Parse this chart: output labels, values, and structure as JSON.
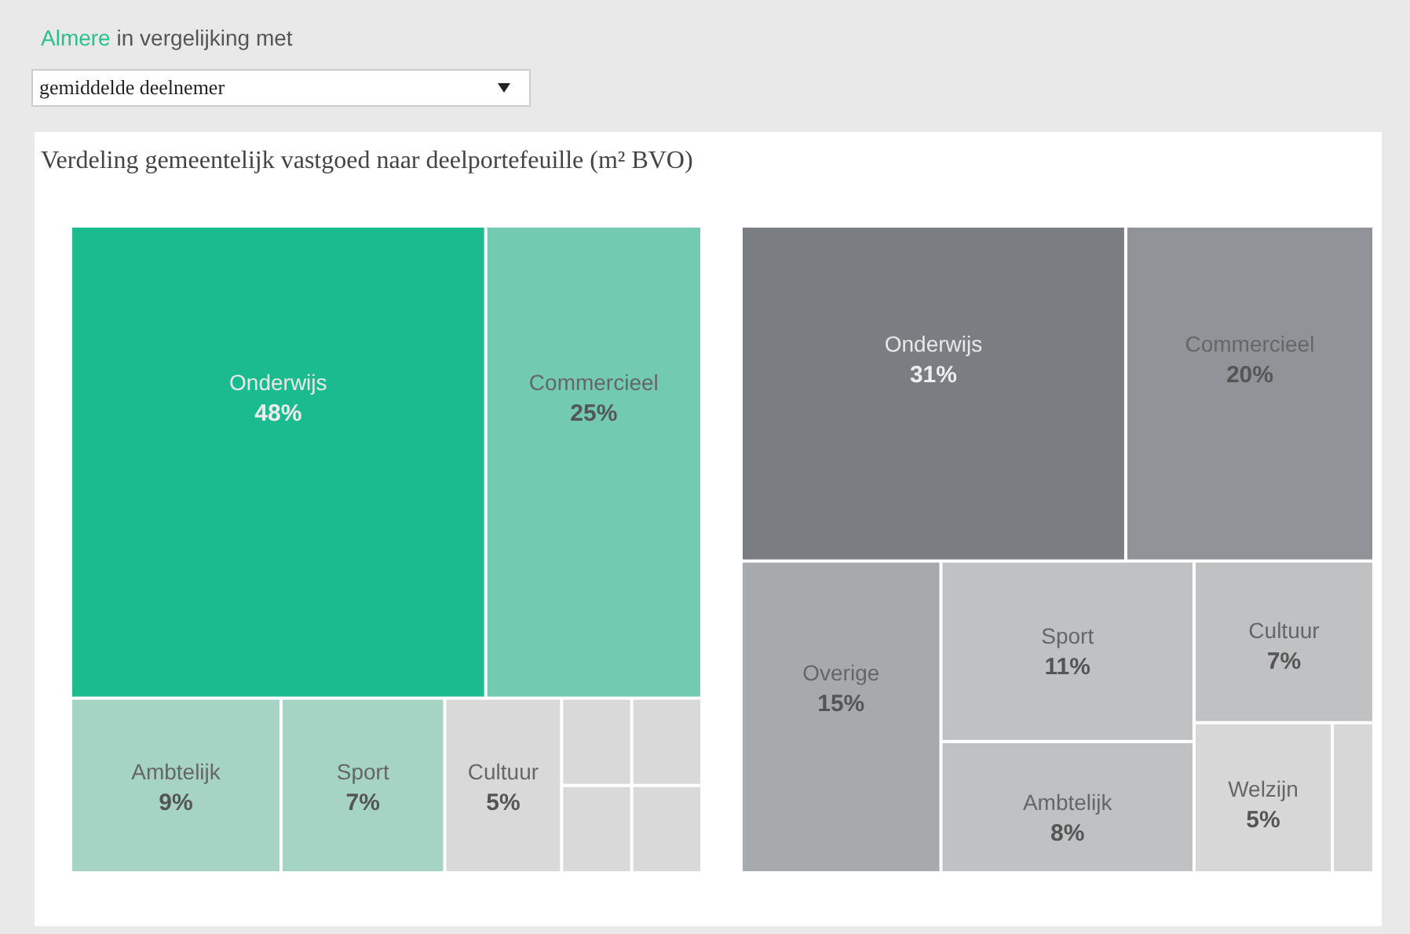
{
  "chart_data": [
    {
      "type": "other",
      "title": "Verdeling gemeentelijk vastgoed naar deelportefeuille (m² BVO)",
      "annotations": [
        "Almere in vergelijking met",
        "gemiddelde deelnemer"
      ],
      "categories": [
        "Onderwijs",
        "Commercieel",
        "Ambtelijk",
        "Sport",
        "Cultuur",
        null,
        null,
        null,
        null
      ],
      "values": [
        48,
        25,
        9,
        7,
        5,
        null,
        null,
        null,
        null
      ],
      "value_labels": [
        "48%",
        "25%",
        "9%",
        "7%",
        "5%",
        null,
        null,
        null,
        null
      ],
      "colors": [
        "#1abc8f",
        "#72cab0",
        "#a5d4c5",
        "#a5d4c5",
        "#d9d9d9",
        "#d9d9d9",
        "#d9d9d9",
        "#d9d9d9",
        "#d9d9d9"
      ]
    },
    {
      "type": "other",
      "categories": [
        "Onderwijs",
        "Commercieel",
        "Overige",
        "Sport",
        "Ambtelijk",
        "Cultuur",
        "Welzijn",
        null
      ],
      "values": [
        31,
        20,
        15,
        11,
        8,
        7,
        5,
        null
      ],
      "value_labels": [
        "31%",
        "20%",
        "15%",
        "11%",
        "8%",
        "7%",
        "5%",
        null
      ],
      "colors": [
        "#7a7e82",
        "#909498",
        "#a7aaad",
        "#bfc1c3",
        "#bfc1c3",
        "#bfc1c3",
        "#d7d7d7",
        "#d7d7d7"
      ]
    }
  ]
}
